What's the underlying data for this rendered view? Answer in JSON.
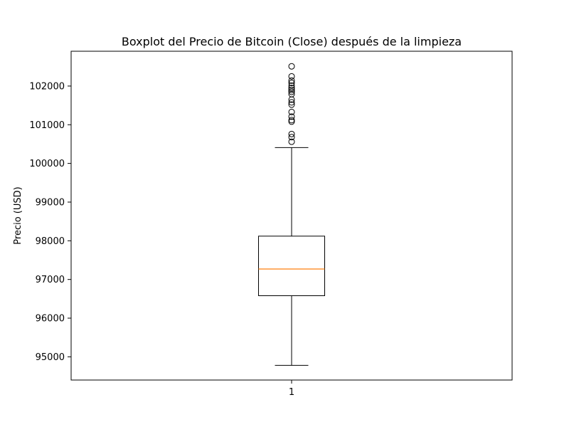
{
  "chart_data": {
    "type": "boxplot",
    "title": "Boxplot del Precio de Bitcoin (Close) después de la limpieza",
    "xlabel": "",
    "ylabel": "Precio (USD)",
    "categories": [
      "1"
    ],
    "ylim": [
      94400,
      102900
    ],
    "yticks": [
      95000,
      96000,
      97000,
      98000,
      99000,
      100000,
      101000,
      102000
    ],
    "ytick_labels": [
      "95000",
      "96000",
      "97000",
      "98000",
      "99000",
      "100000",
      "101000",
      "102000"
    ],
    "boxes": [
      {
        "category": "1",
        "whisker_low": 94780,
        "q1": 96580,
        "median": 97270,
        "q3": 98120,
        "whisker_high": 100410,
        "outliers": [
          100560,
          100680,
          100760,
          101080,
          101120,
          101210,
          101330,
          101520,
          101580,
          101650,
          101790,
          101850,
          101900,
          101950,
          102010,
          102080,
          102140,
          102250,
          102510
        ]
      }
    ],
    "grid": false,
    "colors": {
      "box": "#000000",
      "median": "#ff7f0e",
      "outlier": "#000000",
      "frame": "#000000"
    }
  }
}
